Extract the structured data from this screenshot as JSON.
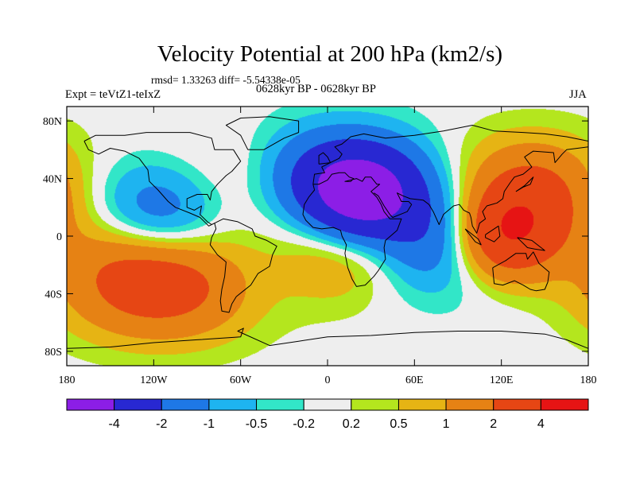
{
  "chart_data": {
    "type": "heatmap",
    "title": "Velocity Potential at 200 hPa (km2/s)",
    "stats_line": "rmsd= 1.33263 diff= -5.54338e-05",
    "left_label": "Expt = teVtZ1-teIxZ",
    "center_label": "0628kyr BP - 0628kyr BP",
    "right_label": "JJA",
    "lat_ticks": [
      80,
      40,
      0,
      -40,
      -80
    ],
    "lat_tick_labels": [
      "80N",
      "40N",
      "0",
      "40S",
      "80S"
    ],
    "lon_ticks": [
      -180,
      -120,
      -60,
      0,
      60,
      120,
      180
    ],
    "lon_tick_labels": [
      "180",
      "120W",
      "60W",
      "0",
      "60E",
      "120E",
      "180"
    ],
    "lon_range": [
      -180,
      180
    ],
    "lat_range": [
      -90,
      90
    ],
    "colorbar": {
      "colors": [
        "#8c1ee6",
        "#2828d2",
        "#1e78e6",
        "#1eb4f0",
        "#32e6c8",
        "#eeeeee",
        "#b4e61e",
        "#e6b414",
        "#e68214",
        "#e64614",
        "#e61414"
      ],
      "levels": [
        -4,
        -2,
        -1,
        -0.5,
        -0.2,
        0.2,
        0.5,
        1,
        2,
        4
      ],
      "level_labels": [
        "-4",
        "-2",
        "-1",
        "-0.5",
        "-0.2",
        "0.2",
        "0.5",
        "1",
        "2",
        "4"
      ]
    },
    "field_features": [
      {
        "lon": 25,
        "lat": 28,
        "value": -4.3,
        "note": "minimum over North Africa / Arabia"
      },
      {
        "lon": 5,
        "lat": 35,
        "value": -2.6,
        "note": "broad low over Africa-Europe"
      },
      {
        "lon": -115,
        "lat": 10,
        "value": -2.3,
        "note": "low in eastern Pacific"
      },
      {
        "lon": 78,
        "lat": 0,
        "value": -2.3,
        "note": "low over Indian Ocean"
      },
      {
        "lon": 120,
        "lat": 0,
        "value": 3.6,
        "note": "maximum over maritime continent"
      },
      {
        "lon": 140,
        "lat": 28,
        "value": 2.5,
        "note": "high over western Pacific"
      },
      {
        "lon": -100,
        "lat": -30,
        "value": 2.2,
        "note": "high in southeast Pacific"
      },
      {
        "lon": -140,
        "lat": -25,
        "value": 2.2,
        "note": "high in south-central Pacific"
      },
      {
        "lon": 10,
        "lat": -5,
        "value": 1.6,
        "note": "high over central Africa"
      },
      {
        "lon": -72,
        "lat": 38,
        "value": 0.6,
        "note": "local high over eastern North America"
      }
    ]
  }
}
